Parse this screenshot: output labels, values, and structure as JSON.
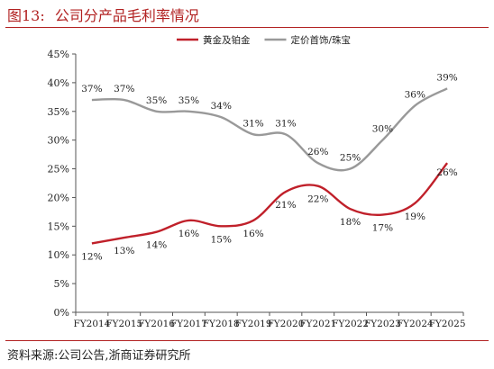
{
  "figure": {
    "label": "图13:",
    "title": "公司分产品毛利率情况",
    "source": "资料来源:公司公告,浙商证券研究所"
  },
  "chart_data": {
    "type": "line",
    "title": "公司分产品毛利率情况",
    "xlabel": "",
    "ylabel": "",
    "categories": [
      "FY2014",
      "FY2015",
      "FY2016",
      "FY2017",
      "FY2018",
      "FY2019",
      "FY2020",
      "FY2021",
      "FY2022",
      "FY2023",
      "FY2024",
      "FY2025"
    ],
    "ylim": [
      0,
      45
    ],
    "yticks": [
      0,
      5,
      10,
      15,
      20,
      25,
      30,
      35,
      40,
      45
    ],
    "y_tick_suffix": "%",
    "legend_position": "top",
    "grid": false,
    "series": [
      {
        "name": "黄金及铂金",
        "color": "#c0202a",
        "values": [
          12,
          13,
          14,
          16,
          15,
          16,
          21,
          22,
          18,
          17,
          19,
          26
        ],
        "labels": [
          "12%",
          "13%",
          "14%",
          "16%",
          "15%",
          "16%",
          "21%",
          "22%",
          "18%",
          "17%",
          "19%",
          "26%"
        ]
      },
      {
        "name": "定价首饰/珠宝",
        "color": "#999999",
        "values": [
          37,
          37,
          35,
          35,
          34,
          31,
          31,
          26,
          25,
          30,
          36,
          39
        ],
        "labels": [
          "37%",
          "37%",
          "35%",
          "35%",
          "34%",
          "31%",
          "31%",
          "26%",
          "25%",
          "30%",
          "36%",
          "39%"
        ]
      }
    ]
  }
}
